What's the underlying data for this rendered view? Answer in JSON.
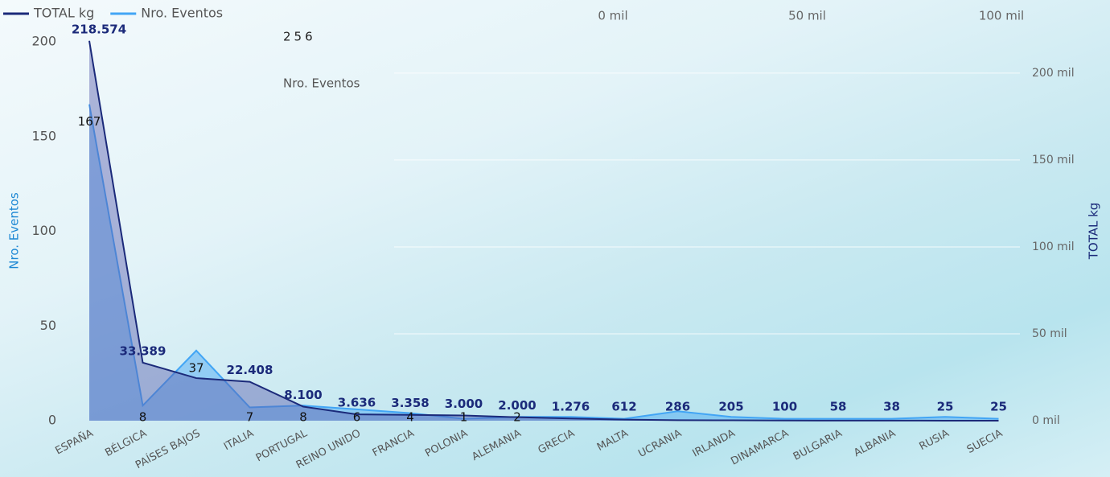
{
  "kpi_card": {
    "value": 256,
    "label": "Nro. Eventos"
  },
  "overlay_axis": {
    "xlim": [
      0,
      100000
    ],
    "xticks": [
      {
        "value": 0,
        "label": "0 mil"
      },
      {
        "value": 50000,
        "label": "50 mil"
      },
      {
        "value": 100000,
        "label": "100 mil"
      }
    ]
  },
  "chart_data": {
    "type": "area",
    "y_label": "Nro. Eventos",
    "y2_label": "TOTAL kg",
    "categories": [
      "ESPAÑA",
      "BÉLGICA",
      "PAÍSES BAJOS",
      "ITALIA",
      "PORTUGAL",
      "REINO UNIDO",
      "FRANCIA",
      "POLONIA",
      "ALEMANIA",
      "GRECIA",
      "MALTA",
      "UCRANIA",
      "IRLANDA",
      "DINAMARCA",
      "BULGARIA",
      "ALBANIA",
      "RUSIA",
      "SUECIA"
    ],
    "series": [
      {
        "name": "TOTAL kg",
        "color": "#1b2a7a",
        "axis": "y2",
        "values": [
          218574,
          33389,
          24500,
          22408,
          8100,
          3636,
          3358,
          3000,
          2000,
          1276,
          612,
          286,
          205,
          100,
          58,
          38,
          25,
          25
        ],
        "value_labels": [
          "218.574",
          "33.389",
          null,
          "22.408",
          "8.100",
          "3.636",
          "3.358",
          "3.000",
          "2.000",
          "1.276",
          "612",
          "286",
          "205",
          "100",
          "58",
          "38",
          "25",
          "25"
        ]
      },
      {
        "name": "Nro. Eventos",
        "color": "#42a5f5",
        "values": [
          167,
          8,
          37,
          7,
          8,
          6,
          4,
          1,
          2,
          2,
          1,
          5,
          2,
          1,
          1,
          1,
          2,
          1
        ],
        "value_labels": [
          "167",
          "8",
          "37",
          "7",
          "8",
          "6",
          "4",
          "1",
          "2",
          null,
          null,
          null,
          null,
          null,
          null,
          null,
          null,
          null
        ]
      }
    ],
    "ylim": [
      0,
      200
    ],
    "yticks": [
      0,
      50,
      100,
      150,
      200
    ],
    "y2lim": [
      0,
      218000
    ],
    "y2ticks": [
      {
        "value": 0,
        "label": "0 mil"
      },
      {
        "value": 50000,
        "label": "50 mil"
      },
      {
        "value": 100000,
        "label": "100 mil"
      },
      {
        "value": 150000,
        "label": "150 mil"
      },
      {
        "value": 200000,
        "label": "200 mil"
      }
    ],
    "grid": true,
    "legend": "top-left"
  }
}
